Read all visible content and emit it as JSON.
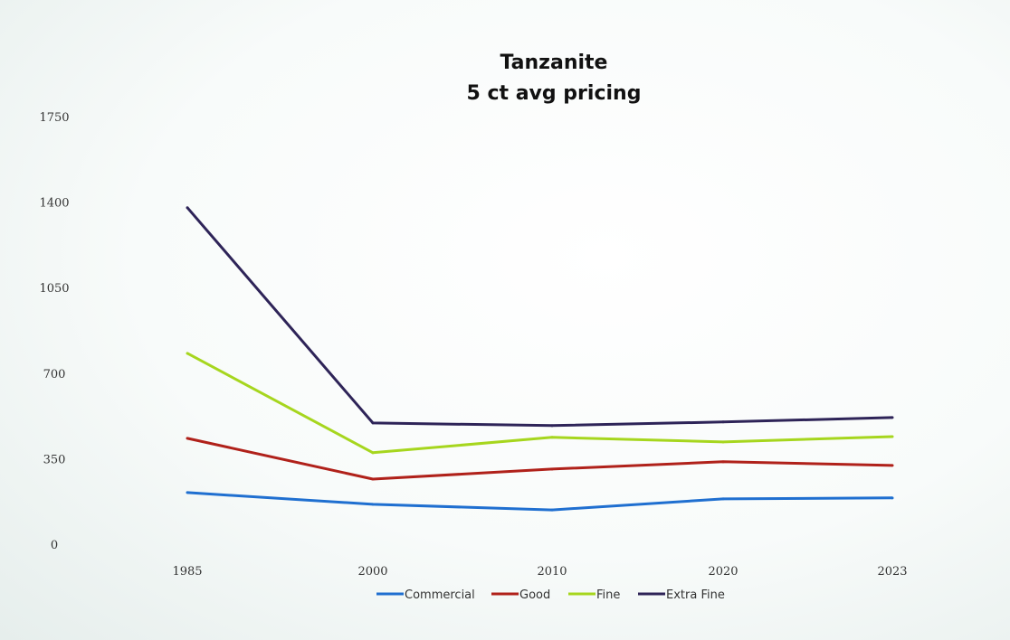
{
  "chart_data": {
    "type": "line",
    "title": [
      "Tanzanite",
      "5 ct avg pricing"
    ],
    "xlabel": "",
    "ylabel": "",
    "categories": [
      "1985",
      "2000",
      "2010",
      "2020",
      "2023"
    ],
    "ylim": [
      0,
      1750
    ],
    "yticks": [
      0,
      350,
      700,
      1050,
      1400,
      1750
    ],
    "grid": false,
    "legend_position": "bottom",
    "series": [
      {
        "name": "Commercial",
        "color": "#1f6fd0",
        "values": [
          215,
          167,
          144,
          189,
          193
        ]
      },
      {
        "name": "Good",
        "color": "#b0211a",
        "values": [
          437,
          270,
          311,
          341,
          326
        ]
      },
      {
        "name": "Fine",
        "color": "#a6d61e",
        "values": [
          785,
          378,
          441,
          422,
          444
        ]
      },
      {
        "name": "Extra Fine",
        "color": "#2e2458",
        "values": [
          1381,
          500,
          489,
          504,
          522
        ]
      }
    ]
  }
}
